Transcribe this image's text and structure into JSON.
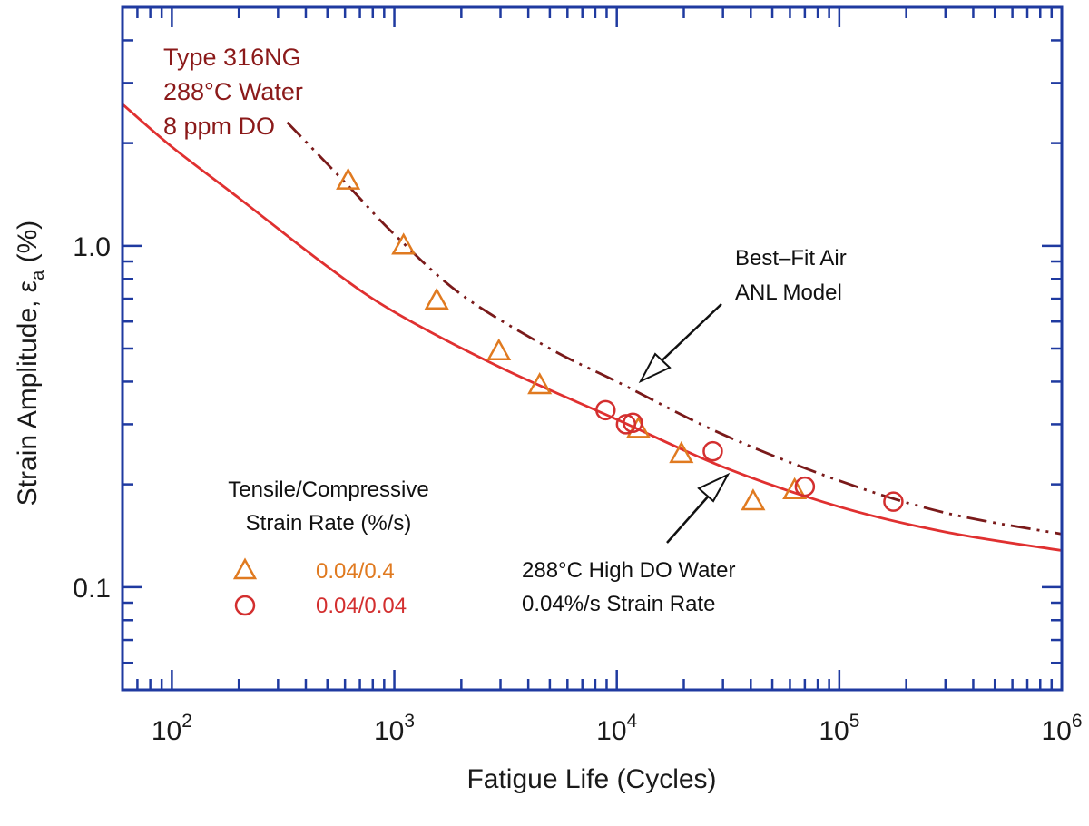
{
  "chart_data": {
    "type": "scatter",
    "xscale": "log",
    "yscale": "log",
    "xlim": [
      60,
      1000000
    ],
    "ylim": [
      0.05,
      5
    ],
    "xlabel": "Fatigue Life (Cycles)",
    "ylabel_main": "Strain Amplitude,  ε",
    "ylabel_sub": "a",
    "ylabel_unit": " (%)",
    "x_ticks": [
      {
        "value": 100,
        "base": "10",
        "exp": "2"
      },
      {
        "value": 1000,
        "base": "10",
        "exp": "3"
      },
      {
        "value": 10000,
        "base": "10",
        "exp": "4"
      },
      {
        "value": 100000,
        "base": "10",
        "exp": "5"
      },
      {
        "value": 1000000,
        "base": "10",
        "exp": "6"
      }
    ],
    "y_ticks": [
      {
        "value": 1.0,
        "label": "1.0"
      },
      {
        "value": 0.1,
        "label": "0.1"
      }
    ],
    "conditions": [
      "Type 316NG",
      "288°C Water",
      "8 ppm  DO"
    ],
    "legend": {
      "title_line1": "Tensile/Compressive",
      "title_line2": "Strain Rate (%/s)",
      "entries": [
        {
          "marker": "triangle",
          "label": "0.04/0.4",
          "color": "#e07a20"
        },
        {
          "marker": "circle",
          "label": "0.04/0.04",
          "color": "#d32f2f"
        }
      ]
    },
    "annotations": {
      "air_line1": "Best–Fit Air",
      "air_line2": "ANL Model",
      "water_line1": "288°C High DO Water",
      "water_line2": "0.04%/s Strain Rate"
    },
    "series": [
      {
        "marker": "triangle",
        "color": "#e07a20",
        "points": [
          {
            "x": 620,
            "y": 1.55
          },
          {
            "x": 1100,
            "y": 1.0
          },
          {
            "x": 1550,
            "y": 0.69
          },
          {
            "x": 2950,
            "y": 0.49
          },
          {
            "x": 4500,
            "y": 0.39
          },
          {
            "x": 12500,
            "y": 0.29
          },
          {
            "x": 19500,
            "y": 0.245
          },
          {
            "x": 41000,
            "y": 0.178
          },
          {
            "x": 63000,
            "y": 0.192
          }
        ]
      },
      {
        "marker": "circle",
        "color": "#d32f2f",
        "points": [
          {
            "x": 8900,
            "y": 0.33
          },
          {
            "x": 11000,
            "y": 0.3
          },
          {
            "x": 11800,
            "y": 0.303
          },
          {
            "x": 27000,
            "y": 0.25
          },
          {
            "x": 70000,
            "y": 0.197
          },
          {
            "x": 175000,
            "y": 0.178
          }
        ]
      }
    ],
    "curves": [
      {
        "name": "Best-Fit Air ANL Model",
        "color": "#7a1a1a",
        "style": "dash-dot",
        "points": [
          [
            330,
            2.3
          ],
          [
            620,
            1.5
          ],
          [
            1000,
            1.08
          ],
          [
            2000,
            0.72
          ],
          [
            5000,
            0.5
          ],
          [
            10000,
            0.4
          ],
          [
            30000,
            0.28
          ],
          [
            100000,
            0.205
          ],
          [
            300000,
            0.165
          ],
          [
            1000000,
            0.143
          ]
        ]
      },
      {
        "name": "288°C High DO Water 0.04%/s Strain Rate",
        "color": "#e03030",
        "style": "solid",
        "points": [
          [
            60,
            2.6
          ],
          [
            100,
            1.95
          ],
          [
            200,
            1.38
          ],
          [
            500,
            0.87
          ],
          [
            1000,
            0.64
          ],
          [
            3000,
            0.44
          ],
          [
            10000,
            0.31
          ],
          [
            30000,
            0.225
          ],
          [
            100000,
            0.172
          ],
          [
            300000,
            0.145
          ],
          [
            1000000,
            0.128
          ]
        ]
      }
    ]
  }
}
